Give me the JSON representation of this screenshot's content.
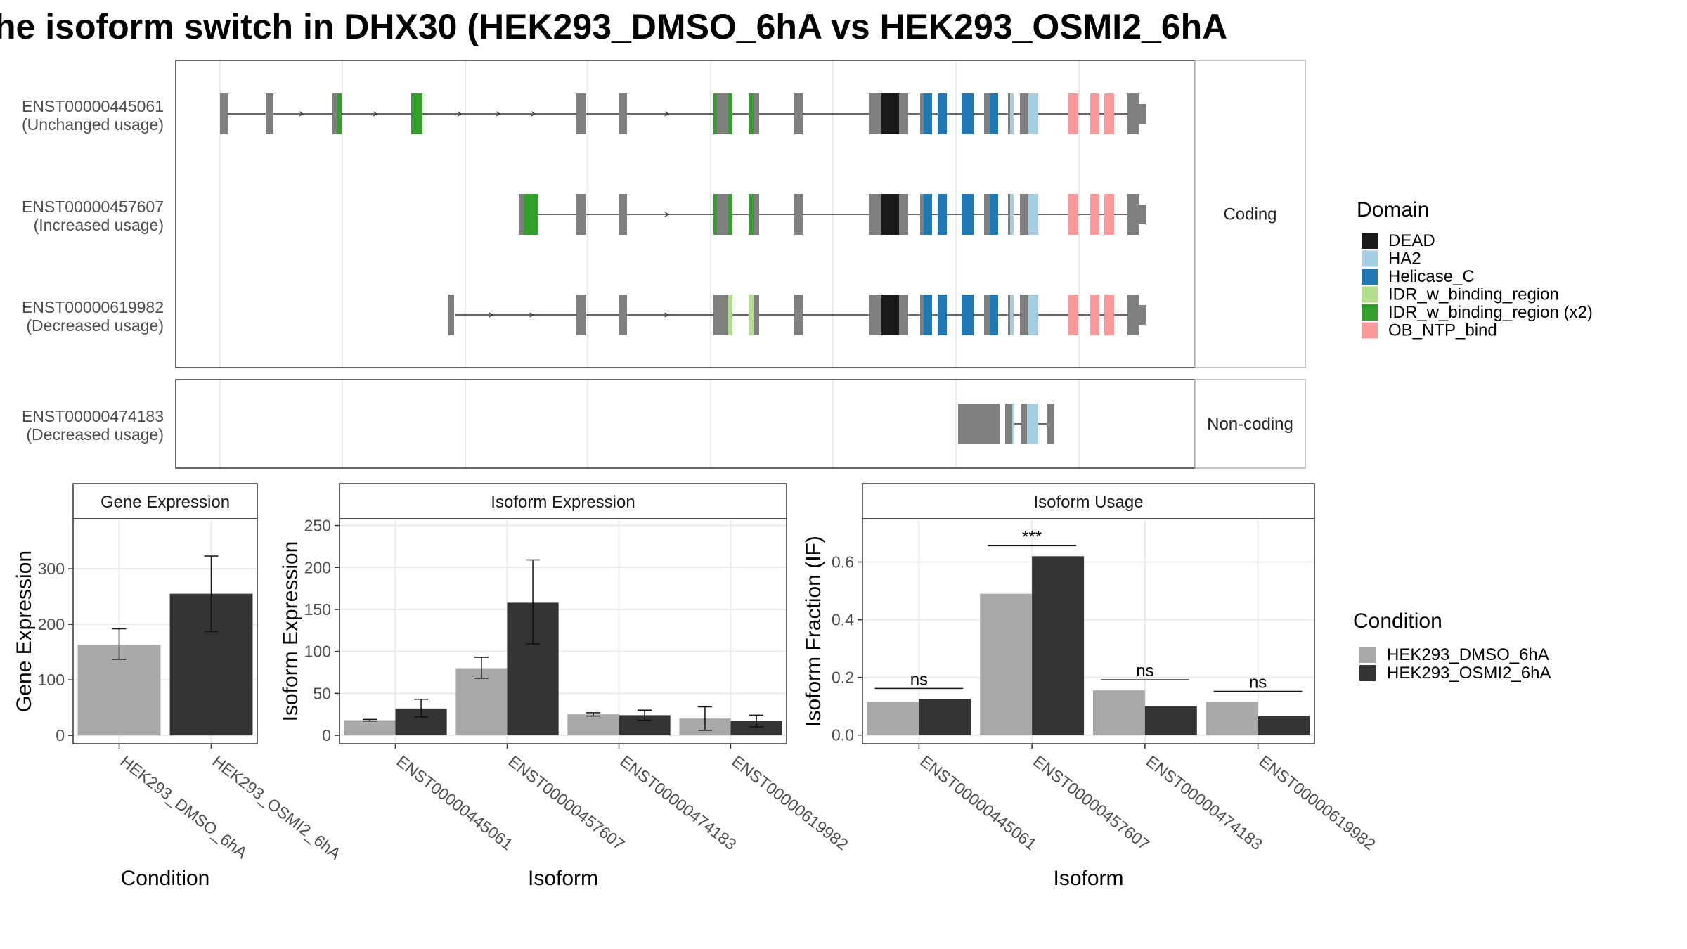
{
  "title": "he isoform switch in DHX30 (HEK293_DMSO_6hA vs HEK293_OSMI2_6hA",
  "structure": {
    "facets": [
      "Coding",
      "Non-coding"
    ],
    "isoforms": [
      {
        "id": "ENST00000445061",
        "usage": "(Unchanged usage)",
        "facet": "Coding"
      },
      {
        "id": "ENST00000457607",
        "usage": "(Increased usage)",
        "facet": "Coding"
      },
      {
        "id": "ENST00000619982",
        "usage": "(Decreased usage)",
        "facet": "Coding"
      },
      {
        "id": "ENST00000474183",
        "usage": "(Decreased usage)",
        "facet": "Non-coding"
      }
    ],
    "domain_legend_title": "Domain",
    "domains": [
      {
        "name": "DEAD",
        "color": "#1a1a1a"
      },
      {
        "name": "HA2",
        "color": "#a6cee3"
      },
      {
        "name": "Helicase_C",
        "color": "#1f78b4"
      },
      {
        "name": "IDR_w_binding_region",
        "color": "#b2df8a"
      },
      {
        "name": "IDR_w_binding_region (x2)",
        "color": "#33a02c"
      },
      {
        "name": "OB_NTP_bind",
        "color": "#fb9a99"
      }
    ],
    "exon_color": "#7f7f7f"
  },
  "condition_legend": {
    "title": "Condition",
    "items": [
      {
        "name": "HEK293_DMSO_6hA",
        "color": "#a9a9a9"
      },
      {
        "name": "HEK293_OSMI2_6hA",
        "color": "#333333"
      }
    ]
  },
  "chart_data": [
    {
      "type": "bar",
      "title": "Gene Expression",
      "xlabel": "Condition",
      "ylabel": "Gene Expression",
      "categories": [
        "HEK293_DMSO_6hA",
        "HEK293_OSMI2_6hA"
      ],
      "values": [
        163,
        255
      ],
      "error": [
        [
          137,
          192
        ],
        [
          187,
          323
        ]
      ],
      "ylim": [
        -15,
        390
      ],
      "yticks": [
        0,
        100,
        200,
        300
      ]
    },
    {
      "type": "bar",
      "title": "Isoform Expression",
      "xlabel": "Isoform",
      "ylabel": "Isoform Expression",
      "categories": [
        "ENST00000445061",
        "ENST00000457607",
        "ENST00000474183",
        "ENST00000619982"
      ],
      "series": [
        {
          "name": "HEK293_DMSO_6hA",
          "values": [
            18,
            80,
            25,
            20
          ],
          "error": [
            [
              17,
              19
            ],
            [
              68,
              93
            ],
            [
              23,
              27
            ],
            [
              6,
              34
            ]
          ]
        },
        {
          "name": "HEK293_OSMI2_6hA",
          "values": [
            32,
            158,
            24,
            17
          ],
          "error": [
            [
              22,
              43
            ],
            [
              109,
              209
            ],
            [
              18,
              30
            ],
            [
              10,
              24
            ]
          ]
        }
      ],
      "ylim": [
        -10,
        258
      ],
      "yticks": [
        0,
        50,
        100,
        150,
        200,
        250
      ]
    },
    {
      "type": "bar",
      "title": "Isoform Usage",
      "xlabel": "Isoform",
      "ylabel": "Isoform Fraction (IF)",
      "categories": [
        "ENST00000445061",
        "ENST00000457607",
        "ENST00000474183",
        "ENST00000619982"
      ],
      "series": [
        {
          "name": "HEK293_DMSO_6hA",
          "values": [
            0.115,
            0.49,
            0.155,
            0.115
          ]
        },
        {
          "name": "HEK293_OSMI2_6hA",
          "values": [
            0.125,
            0.62,
            0.1,
            0.065
          ]
        }
      ],
      "significance": [
        "ns",
        "***",
        "ns",
        "ns"
      ],
      "ylim": [
        -0.03,
        0.75
      ],
      "yticks": [
        "0.0",
        "0.2",
        "0.4",
        "0.6"
      ]
    }
  ]
}
